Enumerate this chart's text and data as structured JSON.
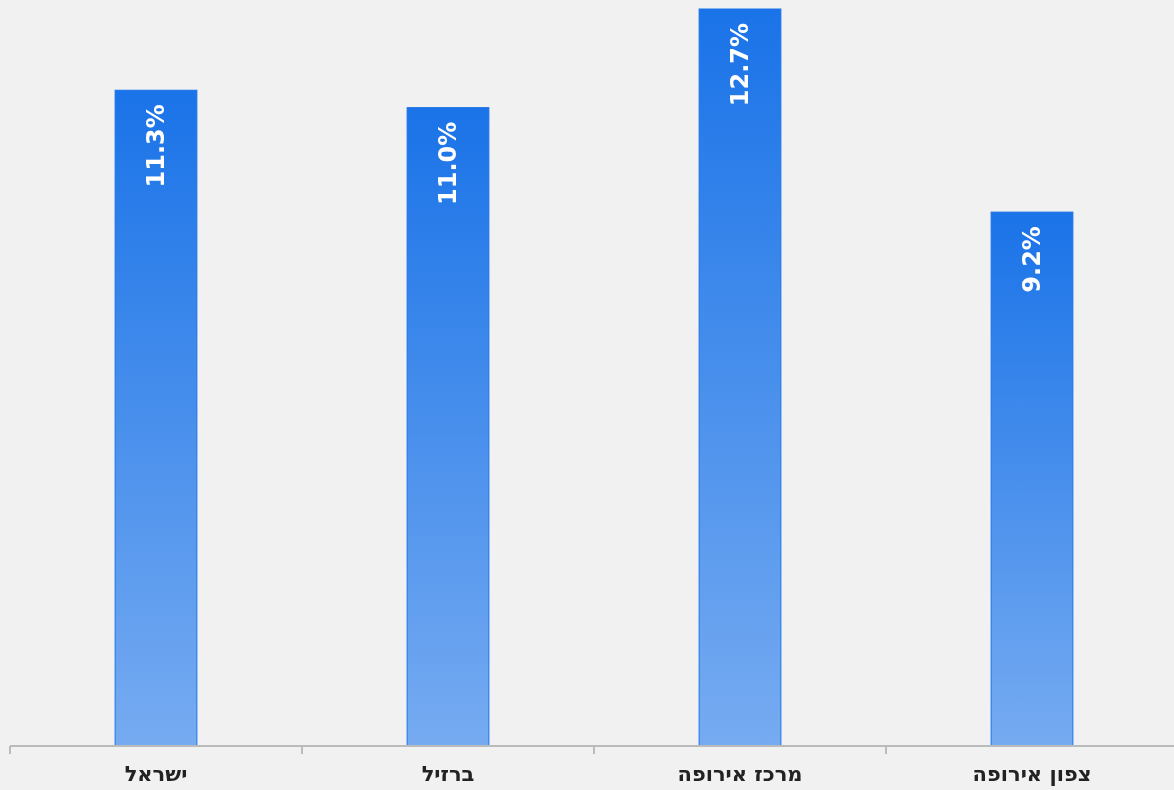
{
  "chart_data": {
    "type": "bar",
    "categories": [
      "ישראל",
      "ברזיל",
      "מרכז אירופה",
      "צפון אירופה"
    ],
    "values": [
      11.3,
      11.0,
      12.7,
      9.2
    ],
    "value_labels": [
      "11.3%",
      "11.0%",
      "12.7%",
      "9.2%"
    ],
    "color": "#1a73e8"
  }
}
